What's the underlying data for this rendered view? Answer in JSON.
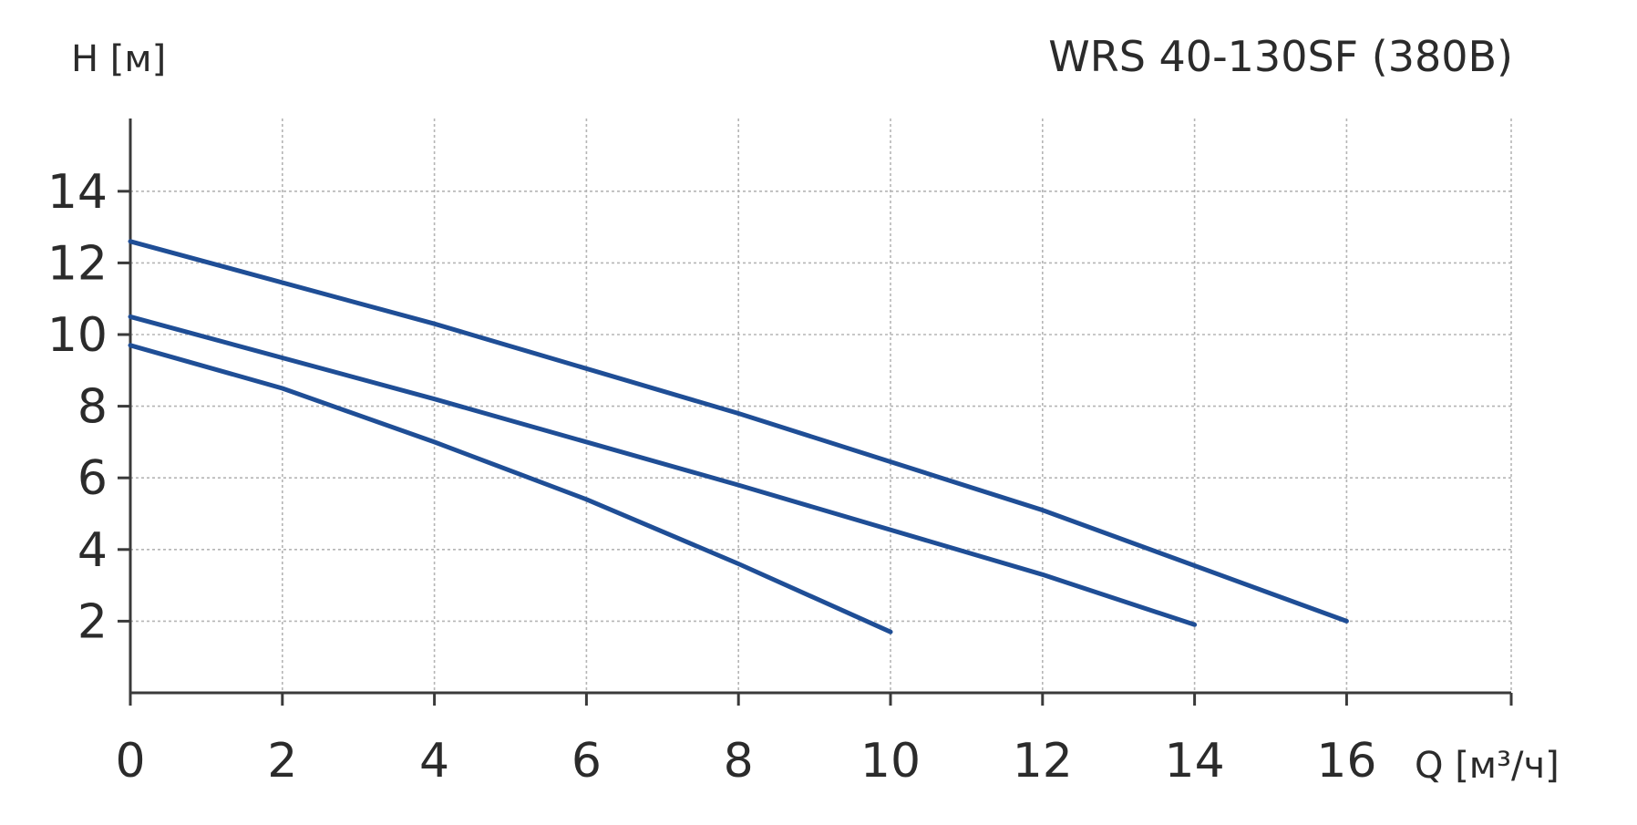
{
  "chart_data": {
    "type": "line",
    "title": "WRS 40-130SF (380В)",
    "ylabel": "H [м]",
    "xlabel": "Q [м³/ч]",
    "xlim": [
      0,
      18.2
    ],
    "ylim": [
      0,
      16
    ],
    "x_ticks": [
      0,
      2,
      4,
      6,
      8,
      10,
      12,
      14,
      16
    ],
    "y_ticks": [
      2,
      4,
      6,
      8,
      10,
      12,
      14
    ],
    "x_tick_labels": [
      "0",
      "2",
      "4",
      "6",
      "8",
      "10",
      "12",
      "14",
      "16"
    ],
    "y_tick_labels": [
      "2",
      "4",
      "6",
      "8",
      "10",
      "12",
      "14"
    ],
    "grid": true,
    "colors": {
      "series": "#1f4e96",
      "axis": "#3a3a3a",
      "grid": "#b5b5b5"
    },
    "series": [
      {
        "x": [
          0,
          4,
          8,
          12,
          16
        ],
        "y": [
          12.6,
          10.3,
          7.8,
          5.1,
          2.0
        ]
      },
      {
        "x": [
          0,
          4,
          8,
          12,
          14
        ],
        "y": [
          10.5,
          8.2,
          5.8,
          3.3,
          1.9
        ]
      },
      {
        "x": [
          0,
          2,
          4,
          6,
          8,
          10
        ],
        "y": [
          9.7,
          8.5,
          7.0,
          5.4,
          3.6,
          1.7
        ]
      }
    ]
  }
}
